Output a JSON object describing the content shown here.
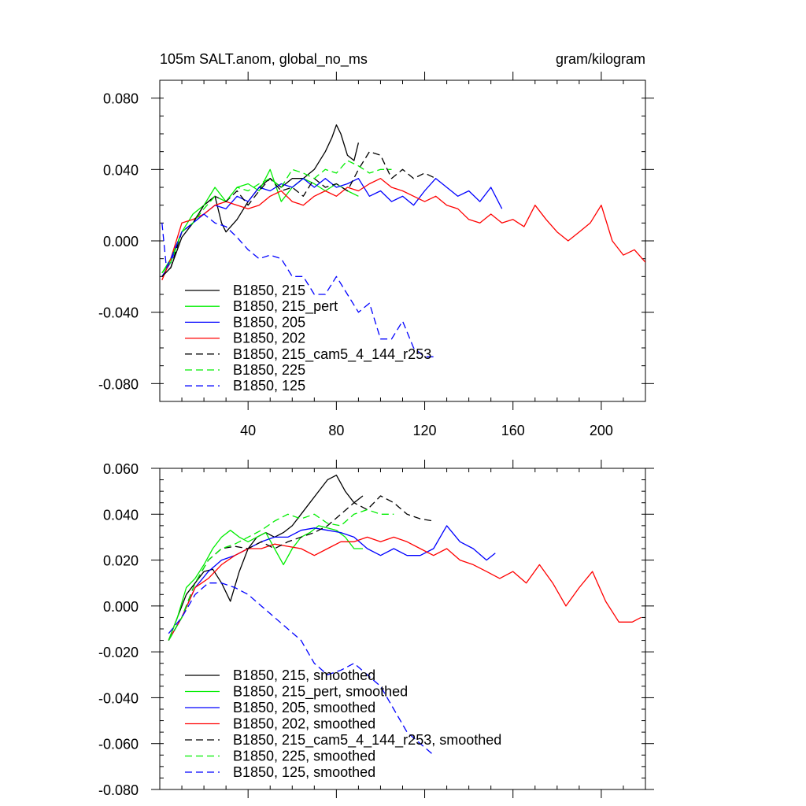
{
  "chart_data": [
    {
      "type": "line",
      "title": "105m SALT.anom, global_no_ms",
      "units": "gram/kilogram",
      "xlim": [
        0,
        220
      ],
      "ylim": [
        -0.09,
        0.09
      ],
      "xticks": [
        40,
        80,
        120,
        160,
        200
      ],
      "xticklabels": [
        "40",
        "80",
        "120",
        "160",
        "200"
      ],
      "yticks": [
        0.08,
        0.04,
        0.0,
        -0.04,
        -0.08
      ],
      "yticklabels": [
        "0.080",
        "0.040",
        "0.000",
        "-0.040",
        "-0.080"
      ],
      "legend": {
        "placement": "bottom-left"
      },
      "series": [
        {
          "name": "B1850, 215",
          "color": "#000000",
          "dash": false,
          "x": [
            1,
            5,
            10,
            15,
            20,
            25,
            28,
            30,
            35,
            40,
            45,
            50,
            55,
            60,
            65,
            70,
            75,
            78,
            80,
            82,
            85,
            88,
            90
          ],
          "y": [
            -0.02,
            -0.015,
            0.002,
            0.01,
            0.02,
            0.025,
            0.01,
            0.005,
            0.012,
            0.022,
            0.03,
            0.035,
            0.03,
            0.035,
            0.035,
            0.04,
            0.05,
            0.058,
            0.065,
            0.06,
            0.048,
            0.045,
            0.055
          ]
        },
        {
          "name": "B1850, 215_pert",
          "color": "#00ee00",
          "dash": false,
          "x": [
            1,
            5,
            10,
            15,
            20,
            25,
            30,
            35,
            40,
            45,
            50,
            55,
            60,
            65,
            70,
            75,
            80,
            85,
            90
          ],
          "y": [
            -0.018,
            -0.01,
            0.005,
            0.015,
            0.02,
            0.03,
            0.022,
            0.03,
            0.032,
            0.028,
            0.04,
            0.022,
            0.03,
            0.035,
            0.032,
            0.028,
            0.032,
            0.028,
            0.025
          ]
        },
        {
          "name": "B1850, 205",
          "color": "#0000ff",
          "dash": false,
          "x": [
            1,
            5,
            10,
            15,
            20,
            25,
            30,
            35,
            40,
            45,
            50,
            55,
            60,
            65,
            70,
            75,
            80,
            85,
            90,
            95,
            100,
            105,
            110,
            115,
            120,
            125,
            130,
            135,
            140,
            145,
            150,
            155
          ],
          "y": [
            -0.02,
            -0.012,
            0.005,
            0.01,
            0.015,
            0.02,
            0.018,
            0.025,
            0.022,
            0.03,
            0.028,
            0.032,
            0.03,
            0.035,
            0.03,
            0.035,
            0.03,
            0.032,
            0.035,
            0.025,
            0.028,
            0.022,
            0.025,
            0.02,
            0.028,
            0.035,
            0.03,
            0.025,
            0.028,
            0.022,
            0.03,
            0.018
          ]
        },
        {
          "name": "B1850, 202",
          "color": "#ff0000",
          "dash": false,
          "x": [
            1,
            5,
            10,
            15,
            20,
            25,
            30,
            35,
            40,
            45,
            50,
            55,
            60,
            65,
            70,
            75,
            80,
            85,
            90,
            95,
            100,
            105,
            110,
            115,
            120,
            125,
            130,
            135,
            140,
            145,
            150,
            155,
            160,
            165,
            170,
            175,
            180,
            185,
            190,
            195,
            200,
            205,
            210,
            215,
            220
          ],
          "y": [
            -0.022,
            -0.01,
            0.01,
            0.012,
            0.015,
            0.02,
            0.022,
            0.02,
            0.018,
            0.02,
            0.025,
            0.028,
            0.022,
            0.02,
            0.025,
            0.028,
            0.025,
            0.03,
            0.028,
            0.032,
            0.035,
            0.03,
            0.028,
            0.025,
            0.022,
            0.025,
            0.02,
            0.018,
            0.012,
            0.01,
            0.015,
            0.01,
            0.012,
            0.008,
            0.02,
            0.012,
            0.005,
            0.0,
            0.005,
            0.01,
            0.02,
            0.0,
            -0.008,
            -0.005,
            -0.012
          ]
        },
        {
          "name": "B1850, 215_cam5_4_144_r253",
          "color": "#000000",
          "dash": true,
          "x": [
            1,
            5,
            10,
            15,
            20,
            25,
            30,
            35,
            40,
            45,
            50,
            55,
            60,
            65,
            70,
            75,
            80,
            85,
            90,
            95,
            100,
            105,
            110,
            115,
            120,
            125
          ],
          "y": [
            -0.02,
            -0.015,
            0.005,
            0.01,
            0.02,
            0.025,
            0.022,
            0.028,
            0.02,
            0.028,
            0.035,
            0.028,
            0.03,
            0.025,
            0.035,
            0.03,
            0.032,
            0.028,
            0.04,
            0.05,
            0.048,
            0.035,
            0.04,
            0.035,
            0.038,
            0.035
          ]
        },
        {
          "name": "B1850, 225",
          "color": "#00ee00",
          "dash": true,
          "x": [
            1,
            5,
            10,
            15,
            20,
            25,
            30,
            35,
            40,
            45,
            50,
            55,
            60,
            65,
            70,
            75,
            80,
            85,
            90,
            95,
            100,
            105
          ],
          "y": [
            -0.018,
            -0.012,
            0.005,
            0.01,
            0.018,
            0.025,
            0.022,
            0.03,
            0.028,
            0.032,
            0.035,
            0.03,
            0.04,
            0.038,
            0.035,
            0.04,
            0.038,
            0.045,
            0.042,
            0.038,
            0.04,
            0.04
          ]
        },
        {
          "name": "B1850, 125",
          "color": "#0000ff",
          "dash": true,
          "x": [
            1,
            3,
            5,
            10,
            15,
            20,
            25,
            30,
            35,
            40,
            45,
            50,
            55,
            60,
            65,
            70,
            75,
            80,
            85,
            90,
            95,
            100,
            105,
            110,
            115,
            120,
            125
          ],
          "y": [
            0.01,
            -0.015,
            -0.01,
            0.005,
            0.01,
            0.015,
            0.01,
            0.008,
            0.002,
            -0.005,
            -0.01,
            -0.008,
            -0.01,
            -0.02,
            -0.02,
            -0.03,
            -0.03,
            -0.02,
            -0.03,
            -0.04,
            -0.035,
            -0.055,
            -0.055,
            -0.045,
            -0.06,
            -0.065,
            -0.065
          ]
        }
      ]
    },
    {
      "type": "line",
      "xlim": [
        0,
        220
      ],
      "ylim": [
        -0.08,
        0.06
      ],
      "xticks": [
        40,
        80,
        120,
        160,
        200
      ],
      "yticks": [
        0.06,
        0.04,
        0.02,
        0.0,
        -0.02,
        -0.04,
        -0.06,
        -0.08
      ],
      "yticklabels": [
        "0.060",
        "0.040",
        "0.020",
        "0.000",
        "-0.020",
        "-0.040",
        "-0.060",
        "-0.080"
      ],
      "legend": {
        "placement": "bottom-left"
      },
      "series": [
        {
          "name": "B1850, 215, smoothed",
          "color": "#000000",
          "dash": false,
          "x": [
            4,
            8,
            12,
            16,
            20,
            24,
            28,
            32,
            36,
            40,
            44,
            48,
            52,
            56,
            60,
            64,
            68,
            72,
            76,
            80,
            84,
            88,
            92
          ],
          "y": [
            -0.015,
            -0.005,
            0.005,
            0.01,
            0.015,
            0.016,
            0.01,
            0.002,
            0.015,
            0.025,
            0.03,
            0.032,
            0.03,
            0.032,
            0.035,
            0.04,
            0.045,
            0.05,
            0.055,
            0.057,
            0.05,
            0.045,
            0.048
          ]
        },
        {
          "name": "B1850, 215_pert, smoothed",
          "color": "#00ee00",
          "dash": false,
          "x": [
            4,
            8,
            12,
            16,
            20,
            24,
            28,
            32,
            36,
            40,
            44,
            48,
            52,
            56,
            60,
            64,
            68,
            72,
            76,
            80,
            84,
            88,
            92
          ],
          "y": [
            -0.015,
            -0.005,
            0.008,
            0.012,
            0.018,
            0.025,
            0.03,
            0.033,
            0.03,
            0.028,
            0.03,
            0.032,
            0.025,
            0.018,
            0.025,
            0.03,
            0.032,
            0.035,
            0.034,
            0.033,
            0.03,
            0.025,
            0.025
          ]
        },
        {
          "name": "B1850, 205, smoothed",
          "color": "#0000ff",
          "dash": false,
          "x": [
            4,
            10,
            16,
            22,
            28,
            34,
            40,
            46,
            52,
            58,
            64,
            70,
            76,
            82,
            88,
            94,
            100,
            106,
            112,
            118,
            124,
            130,
            136,
            142,
            148,
            152
          ],
          "y": [
            -0.015,
            -0.005,
            0.008,
            0.015,
            0.02,
            0.022,
            0.025,
            0.028,
            0.03,
            0.03,
            0.033,
            0.034,
            0.033,
            0.032,
            0.03,
            0.025,
            0.022,
            0.025,
            0.022,
            0.022,
            0.025,
            0.035,
            0.028,
            0.025,
            0.02,
            0.023
          ]
        },
        {
          "name": "B1850, 202, smoothed",
          "color": "#ff0000",
          "dash": false,
          "x": [
            4,
            10,
            16,
            22,
            28,
            34,
            40,
            46,
            52,
            58,
            64,
            70,
            76,
            82,
            88,
            94,
            100,
            106,
            112,
            118,
            124,
            130,
            136,
            142,
            148,
            154,
            160,
            166,
            172,
            178,
            184,
            190,
            196,
            202,
            208,
            214,
            218
          ],
          "y": [
            -0.015,
            -0.005,
            0.008,
            0.012,
            0.018,
            0.022,
            0.025,
            0.025,
            0.027,
            0.026,
            0.025,
            0.022,
            0.025,
            0.028,
            0.028,
            0.03,
            0.028,
            0.03,
            0.028,
            0.025,
            0.022,
            0.025,
            0.02,
            0.018,
            0.015,
            0.012,
            0.015,
            0.01,
            0.018,
            0.01,
            0.0,
            0.008,
            0.015,
            0.002,
            -0.007,
            -0.007,
            -0.005
          ]
        },
        {
          "name": "B1850, 215_cam5_4_144_r253, smoothed",
          "color": "#000000",
          "dash": true,
          "x": [
            4,
            10,
            16,
            22,
            28,
            34,
            40,
            46,
            52,
            58,
            64,
            70,
            76,
            82,
            88,
            94,
            100,
            106,
            112,
            118,
            124
          ],
          "y": [
            -0.015,
            -0.005,
            0.01,
            0.02,
            0.025,
            0.026,
            0.025,
            0.028,
            0.025,
            0.028,
            0.03,
            0.032,
            0.035,
            0.04,
            0.045,
            0.042,
            0.048,
            0.045,
            0.04,
            0.038,
            0.037
          ]
        },
        {
          "name": "B1850, 225, smoothed",
          "color": "#00ee00",
          "dash": true,
          "x": [
            4,
            10,
            16,
            22,
            28,
            34,
            40,
            46,
            52,
            58,
            64,
            70,
            76,
            82,
            88,
            94,
            100,
            106
          ],
          "y": [
            -0.015,
            -0.005,
            0.01,
            0.02,
            0.025,
            0.027,
            0.03,
            0.033,
            0.037,
            0.04,
            0.038,
            0.04,
            0.036,
            0.035,
            0.04,
            0.042,
            0.04,
            0.04
          ]
        },
        {
          "name": "B1850, 125, smoothed",
          "color": "#0000ff",
          "dash": true,
          "x": [
            4,
            10,
            16,
            22,
            28,
            34,
            40,
            46,
            52,
            58,
            64,
            70,
            76,
            82,
            88,
            94,
            100,
            106,
            112,
            118,
            124
          ],
          "y": [
            -0.012,
            -0.005,
            0.005,
            0.01,
            0.01,
            0.008,
            0.005,
            0.0,
            -0.005,
            -0.01,
            -0.015,
            -0.025,
            -0.03,
            -0.028,
            -0.025,
            -0.03,
            -0.035,
            -0.045,
            -0.055,
            -0.06,
            -0.065
          ]
        }
      ]
    }
  ]
}
